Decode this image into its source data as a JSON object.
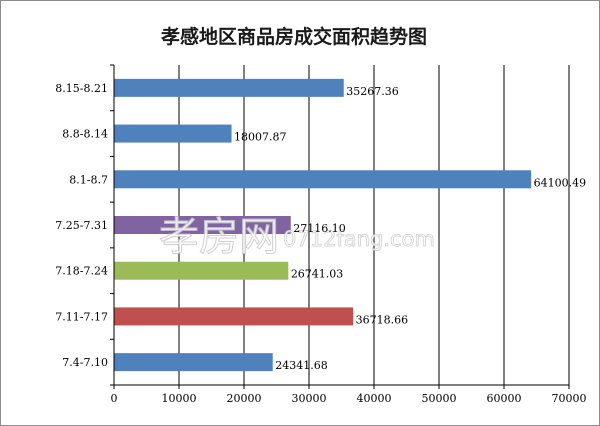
{
  "chart_data": {
    "type": "bar",
    "orientation": "horizontal",
    "title": "孝感地区商品房成交面积趋势图",
    "categories": [
      "8.15-8.21",
      "8.8-8.14",
      "8.1-8.7",
      "7.25-7.31",
      "7.18-7.24",
      "7.11-7.17",
      "7.4-7.10"
    ],
    "values": [
      35267.36,
      18007.87,
      64100.49,
      27116.1,
      26741.03,
      36718.66,
      24341.68
    ],
    "value_labels": [
      "35267.36",
      "18007.87",
      "64100.49",
      "27116.10",
      "26741.03",
      "36718.66",
      "24341.68"
    ],
    "bar_colors": [
      "#4f81bd",
      "#4f81bd",
      "#4f81bd",
      "#8064a2",
      "#9bbb59",
      "#c0504d",
      "#4f81bd"
    ],
    "xlim": [
      0,
      70000
    ],
    "xticks": [
      0,
      10000,
      20000,
      30000,
      40000,
      50000,
      60000,
      70000
    ],
    "xtick_labels": [
      "0",
      "10000",
      "20000",
      "30000",
      "40000",
      "50000",
      "60000",
      "70000"
    ],
    "xlabel": "",
    "ylabel": "",
    "grid": "vertical",
    "legend": "none"
  },
  "watermark": {
    "brand": "孝房网",
    "domain": "0712fang.com"
  }
}
